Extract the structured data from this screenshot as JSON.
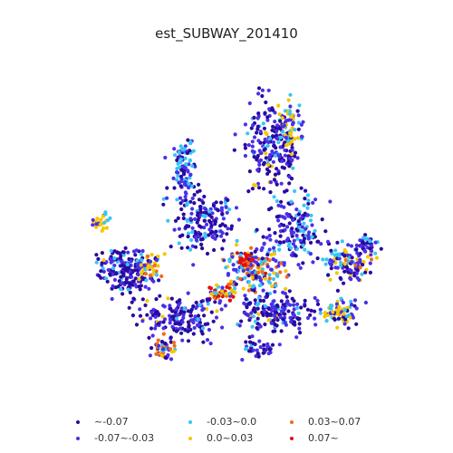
{
  "title": "est_SUBWAY_201410",
  "legend": [
    {
      "label": "~-0.07",
      "color": "#2a0a9e"
    },
    {
      "label": "-0.07~-0.03",
      "color": "#4a30e8"
    },
    {
      "label": "-0.03~0.0",
      "color": "#36c6f4"
    },
    {
      "label": "0.0~0.03",
      "color": "#f7c600"
    },
    {
      "label": "0.03~0.07",
      "color": "#f26a1b"
    },
    {
      "label": "0.07~",
      "color": "#e01010"
    }
  ],
  "chart_data": {
    "type": "scatter",
    "title": "est_SUBWAY_201410",
    "xlabel": "",
    "ylabel": "",
    "axes": "off",
    "legend_location": "bottom",
    "series": [
      {
        "name": "~-0.07",
        "color": "#2a0a9e"
      },
      {
        "name": "-0.07~-0.03",
        "color": "#4a30e8"
      },
      {
        "name": "-0.03~0.0",
        "color": "#36c6f4"
      },
      {
        "name": "0.0~0.03",
        "color": "#f7c600"
      },
      {
        "name": "0.03~0.07",
        "color": "#f26a1b"
      },
      {
        "name": "0.07~",
        "color": "#e01010"
      }
    ]
  }
}
